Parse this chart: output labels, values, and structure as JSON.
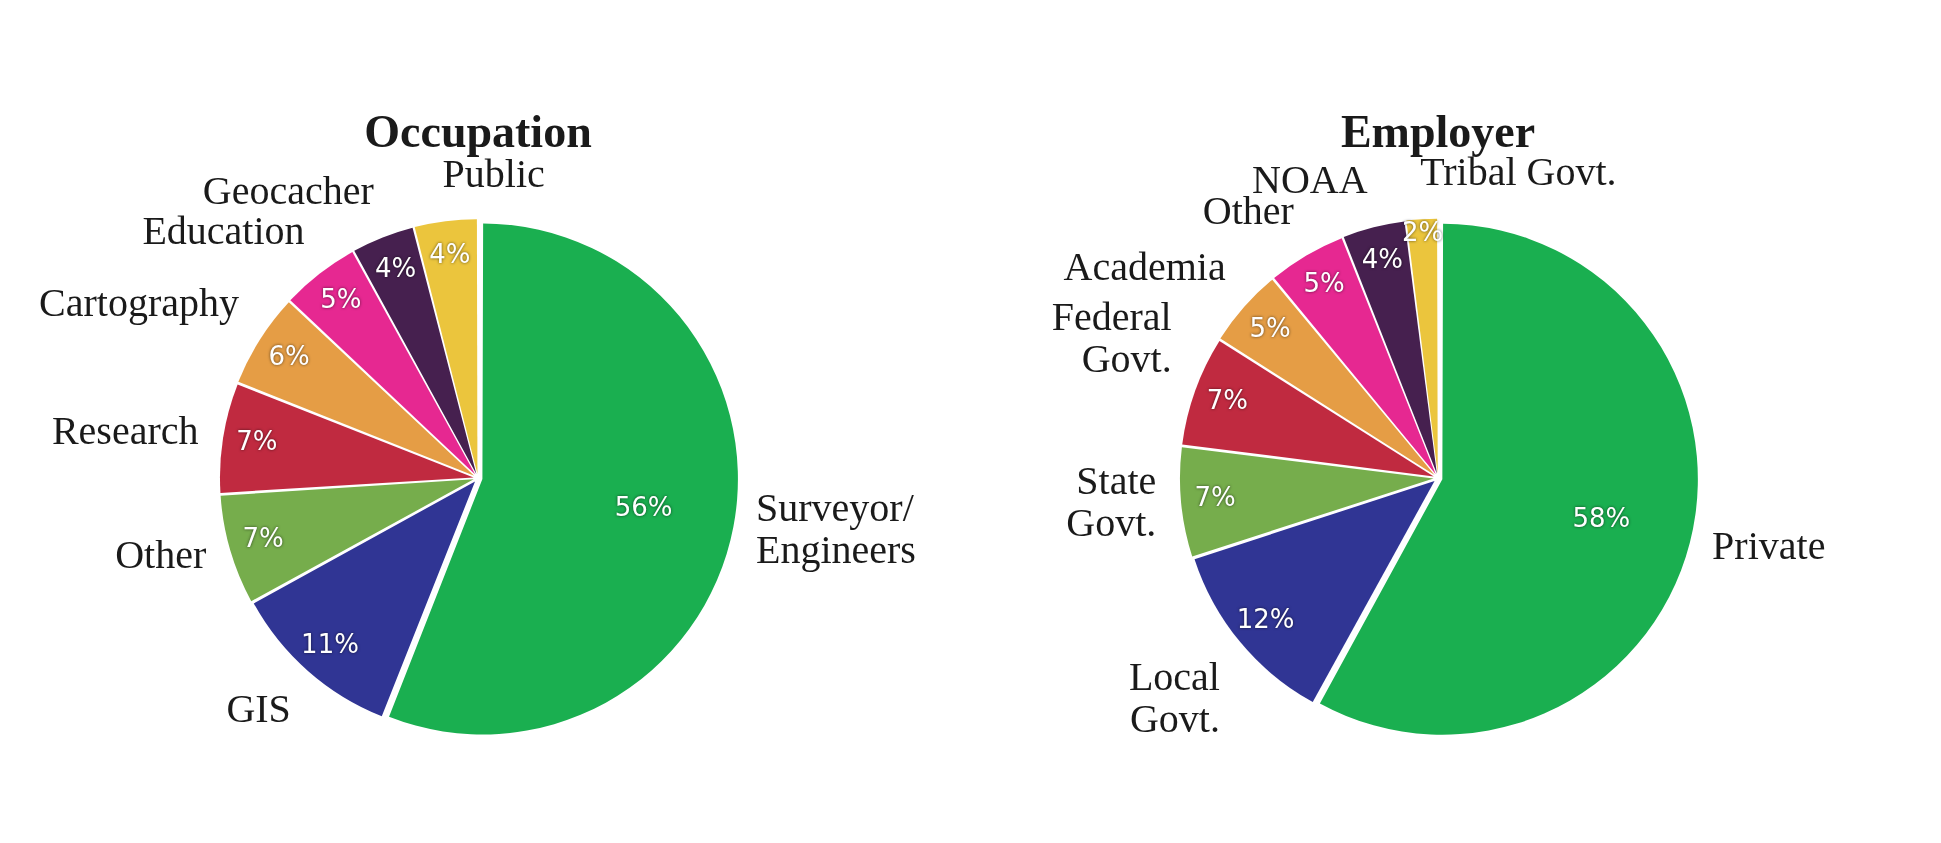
{
  "chart_data": [
    {
      "type": "pie",
      "title": "Occupation",
      "categories": [
        "Surveyor/\nEngineers",
        "GIS",
        "Other",
        "Research",
        "Cartography",
        "Education",
        "Geocacher",
        "Public"
      ],
      "values": [
        56,
        11,
        7,
        7,
        6,
        5,
        4,
        4
      ],
      "value_labels": [
        "56%",
        "11%",
        "7%",
        "7%",
        "6%",
        "5%",
        "4%",
        "4%"
      ],
      "colors": [
        "#1aaf50",
        "#303594",
        "#76ad4c",
        "#c02a40",
        "#e59d45",
        "#e62891",
        "#46204f",
        "#ebc53d"
      ]
    },
    {
      "type": "pie",
      "title": "Employer",
      "categories": [
        "Private",
        "Local\nGovt.",
        "State\nGovt.",
        "Federal\nGovt.",
        "Academia",
        "Other",
        "NOAA",
        "Tribal Govt."
      ],
      "values": [
        58,
        12,
        7,
        7,
        5,
        5,
        4,
        2
      ],
      "value_labels": [
        "58%",
        "12%",
        "7%",
        "7%",
        "5%",
        "5%",
        "4%",
        "2%"
      ],
      "colors": [
        "#1aaf50",
        "#303594",
        "#76ad4c",
        "#c02a40",
        "#e59d45",
        "#e62891",
        "#46204f",
        "#ebc53d"
      ]
    }
  ]
}
